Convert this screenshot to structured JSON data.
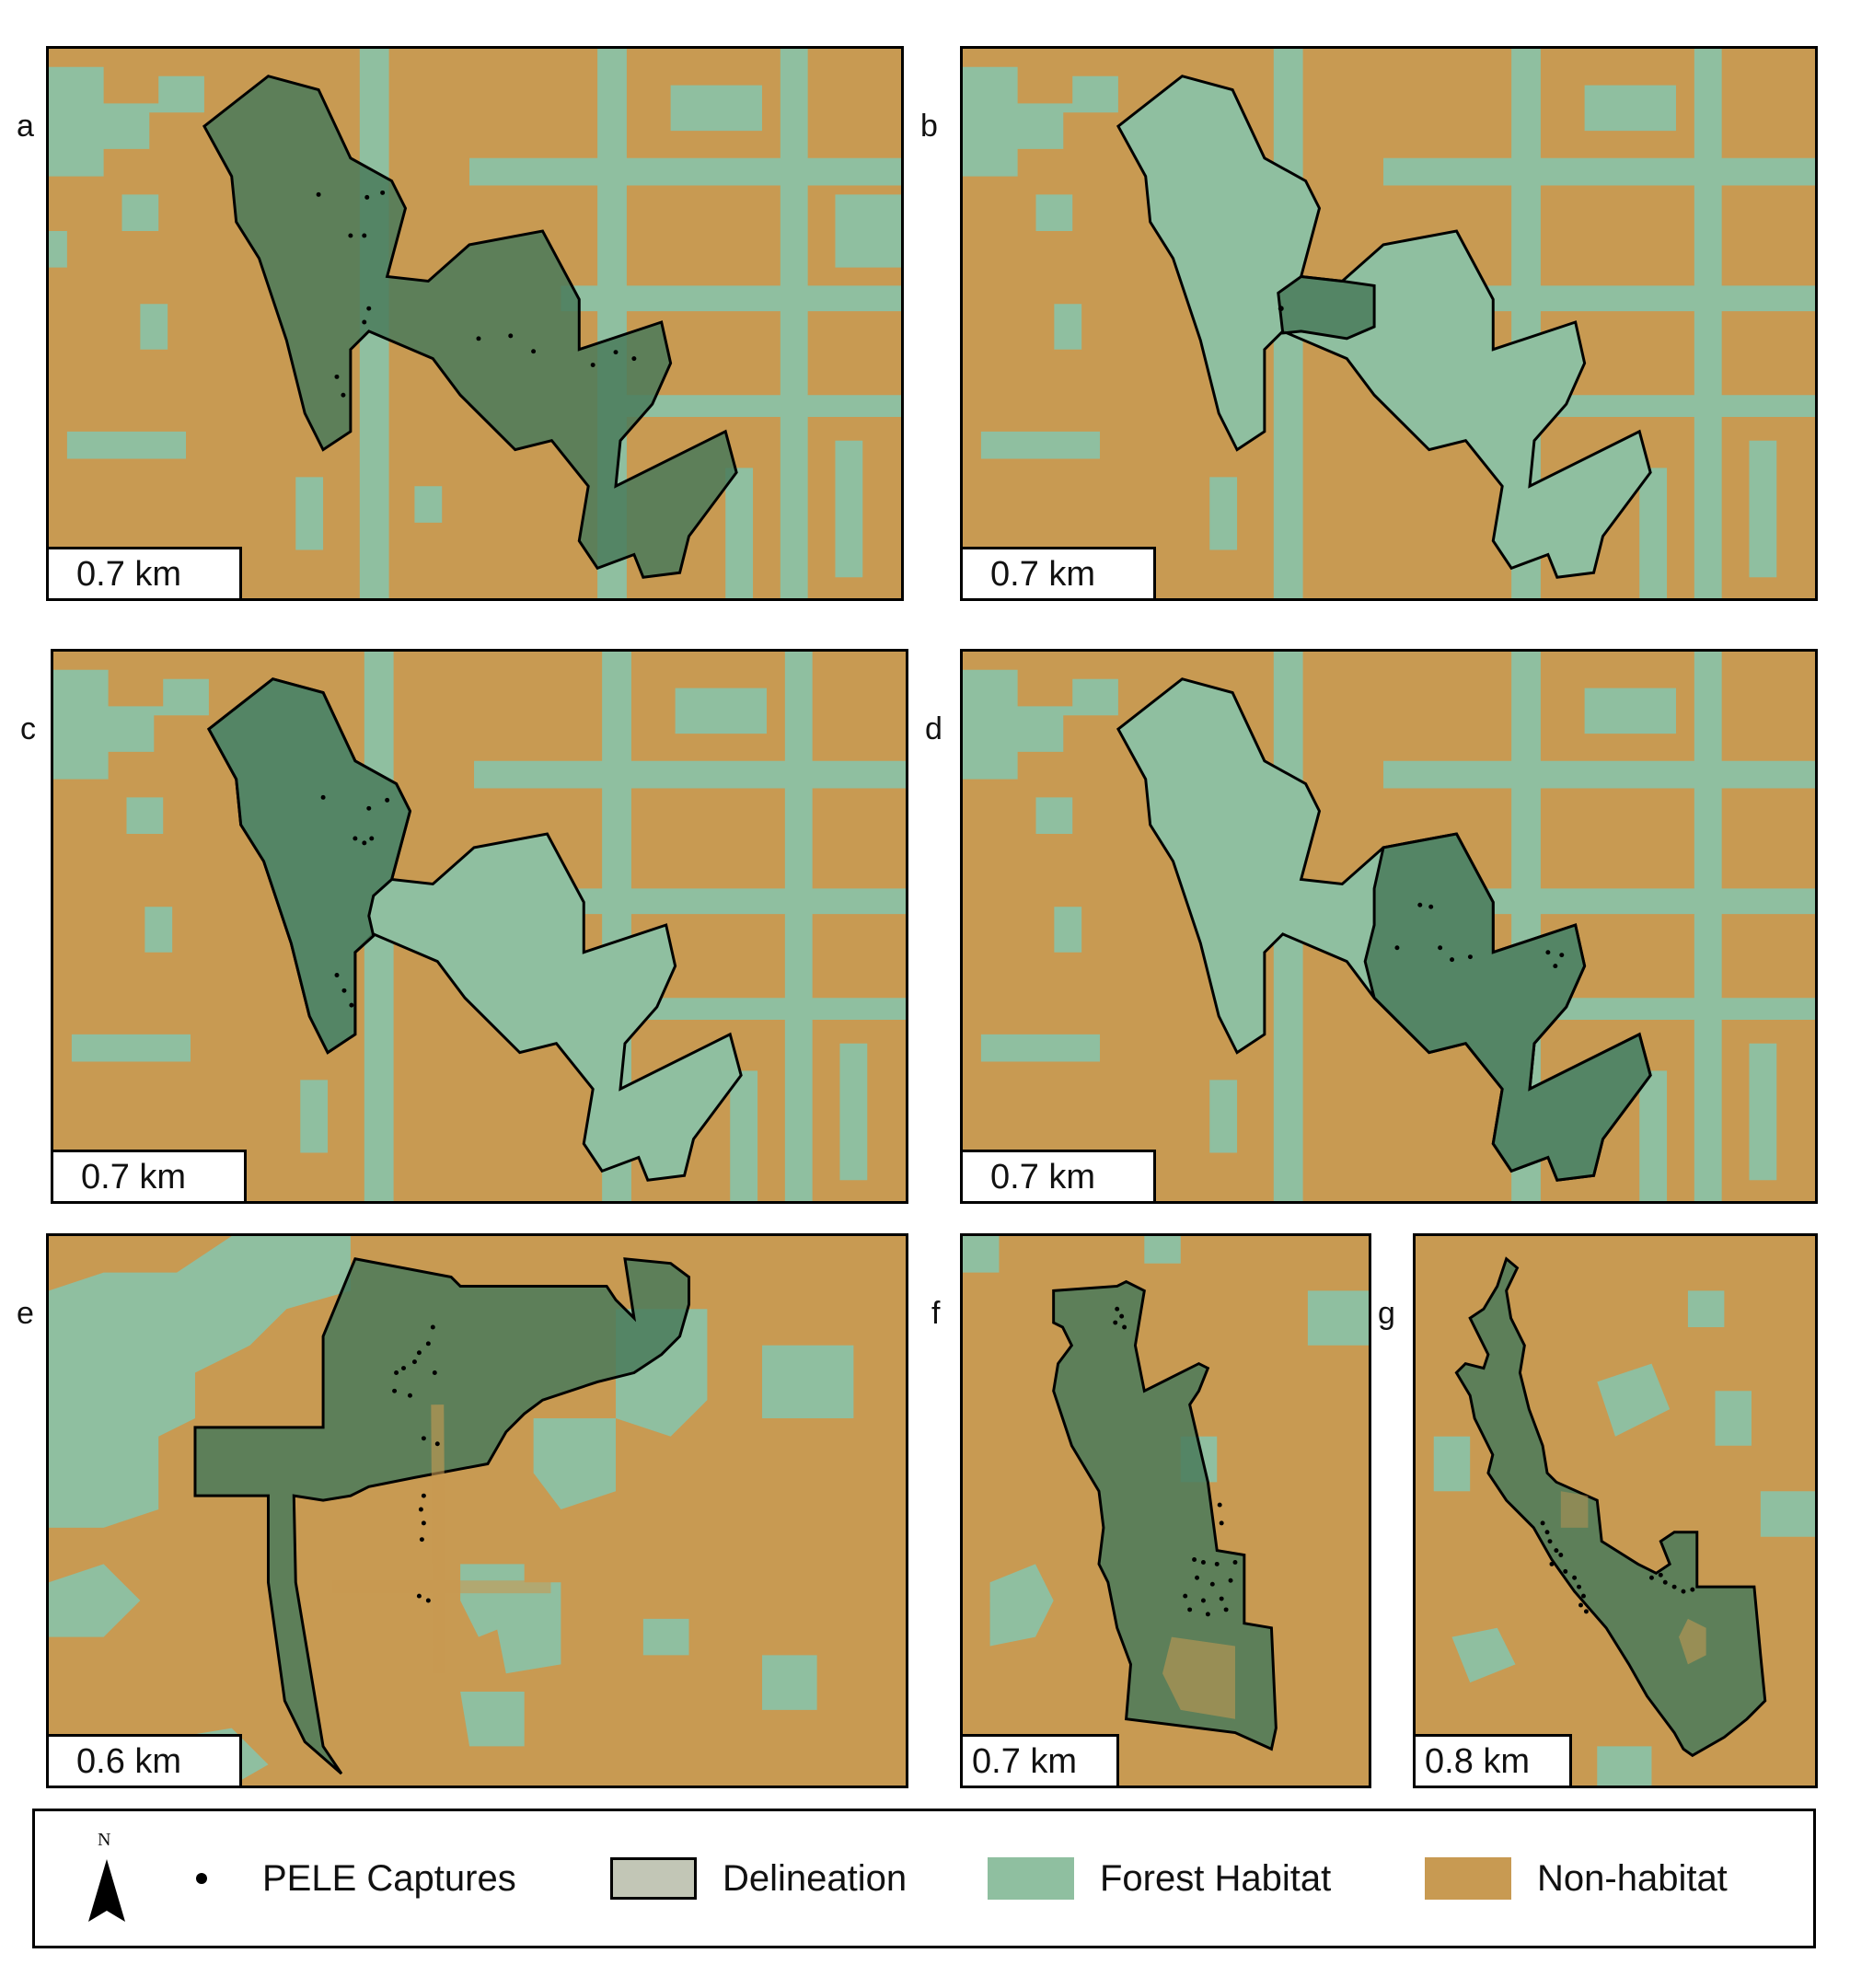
{
  "panels": [
    {
      "letter": "a",
      "scale": "0.7 km"
    },
    {
      "letter": "b",
      "scale": "0.7 km"
    },
    {
      "letter": "c",
      "scale": "0.7 km"
    },
    {
      "letter": "d",
      "scale": "0.7 km"
    },
    {
      "letter": "e",
      "scale": "0.6 km"
    },
    {
      "letter": "f",
      "scale": "0.7 km"
    },
    {
      "letter": "g",
      "scale": "0.8 km"
    }
  ],
  "legend": {
    "north": "N",
    "captures": "PELE Captures",
    "delineation": "Delineation",
    "forest": "Forest Habitat",
    "nonhabitat": "Non-habitat"
  },
  "colors": {
    "nonhabitat": "#c89a52",
    "forest": "#8fbfa0",
    "delineation_fill": "#4a7a5a",
    "delineation_swatch": "#c2c6b6",
    "outline": "#000000"
  }
}
